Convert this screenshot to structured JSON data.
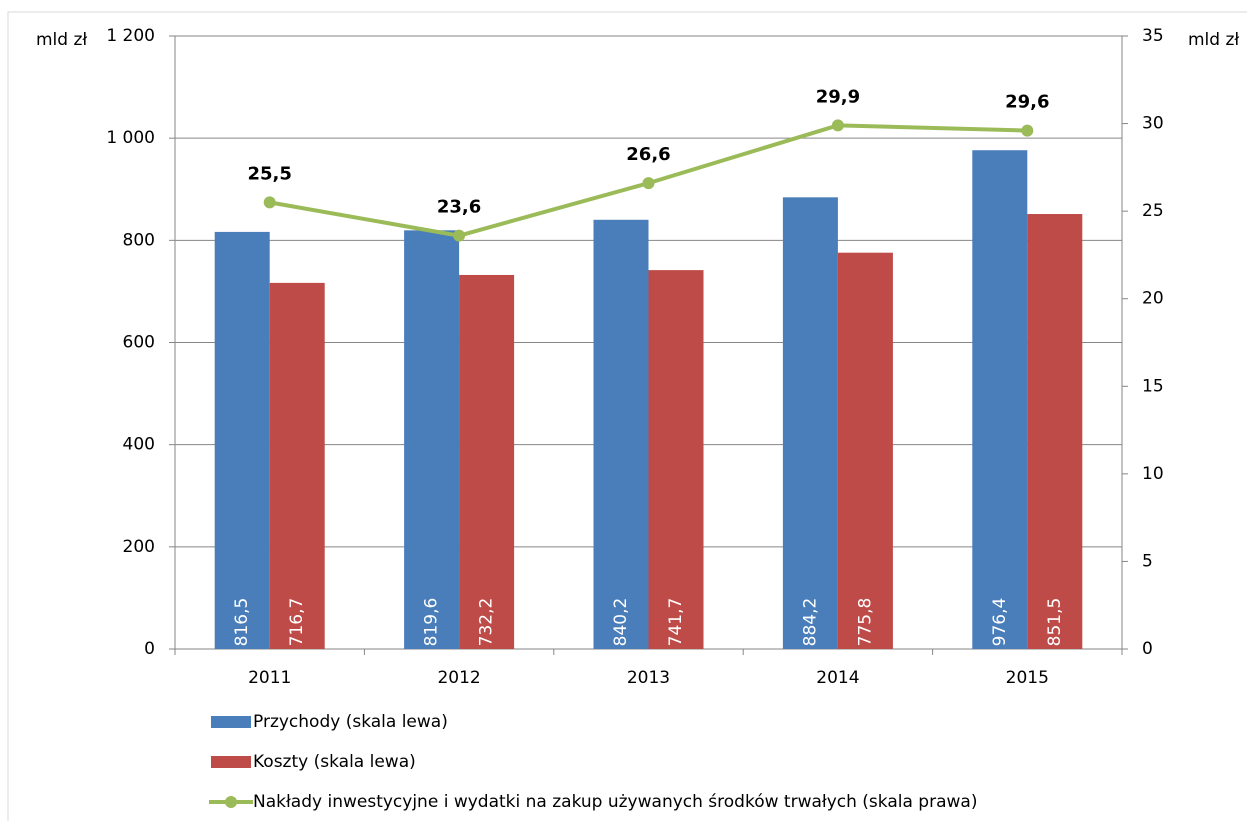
{
  "chart_data": {
    "type": "bar_line",
    "ylabel": "mld zł",
    "y2label": "mld zł",
    "categories": [
      "2011",
      "2012",
      "2013",
      "2014",
      "2015"
    ],
    "series": [
      {
        "name": "Przychody (skala lewa)",
        "type": "bar",
        "color": "#4a7ebb",
        "values": [
          816.5,
          819.6,
          840.2,
          884.2,
          976.4
        ],
        "value_labels": [
          "816,5",
          "819,6",
          "840,2",
          "884,2",
          "976,4"
        ]
      },
      {
        "name": "Koszty (skala lewa)",
        "type": "bar",
        "color": "#be4b48",
        "values": [
          716.7,
          732.2,
          741.7,
          775.8,
          851.5
        ],
        "value_labels": [
          "716,7",
          "732,2",
          "741,7",
          "775,8",
          "851,5"
        ]
      },
      {
        "name": "Nakłady inwestycyjne i wydatki na zakup używanych środków trwałych (skala prawa)",
        "type": "line",
        "axis": "y2",
        "color": "#9bbb59",
        "values": [
          25.5,
          23.6,
          26.6,
          29.9,
          29.6
        ],
        "value_labels": [
          "25,5",
          "23,6",
          "26,6",
          "29,9",
          "29,6"
        ]
      }
    ],
    "ylim": [
      0,
      1200
    ],
    "yticks": [
      0,
      200,
      400,
      600,
      800,
      {
        "value": 1000,
        "label": "1 000"
      },
      {
        "value": 1200,
        "label": "1 200"
      }
    ],
    "y2lim": [
      0,
      35
    ],
    "y2ticks": [
      0,
      5,
      10,
      15,
      20,
      25,
      30,
      35
    ],
    "grid": true
  }
}
